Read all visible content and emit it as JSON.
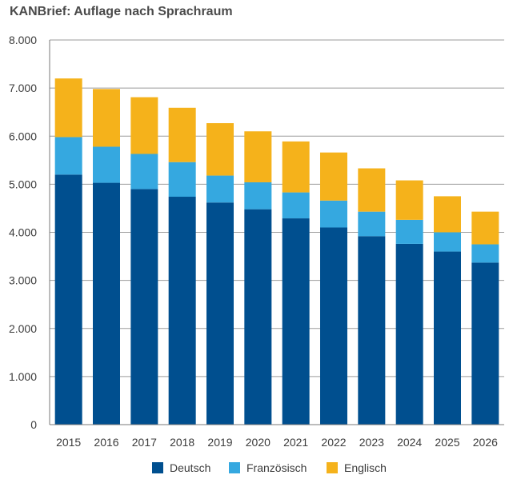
{
  "chart_data": {
    "type": "bar",
    "stacked": true,
    "title": "KANBrief: Auflage nach Sprachraum",
    "xlabel": "",
    "ylabel": "",
    "ylim": [
      0,
      8000
    ],
    "yticks": [
      0,
      1000,
      2000,
      3000,
      4000,
      5000,
      6000,
      7000,
      8000
    ],
    "ytick_labels": [
      "0",
      "1.000",
      "2.000",
      "3.000",
      "4.000",
      "5.000",
      "6.000",
      "7.000",
      "8.000"
    ],
    "grid": true,
    "legend_position": "bottom-center",
    "categories": [
      "2015",
      "2016",
      "2017",
      "2018",
      "2019",
      "2020",
      "2021",
      "2022",
      "2023",
      "2024",
      "2025",
      "2026"
    ],
    "series": [
      {
        "name": "Deutsch",
        "color": "#004f8f",
        "values": [
          5200,
          5030,
          4900,
          4740,
          4620,
          4480,
          4290,
          4100,
          3920,
          3760,
          3600,
          3370
        ]
      },
      {
        "name": "Französisch",
        "color": "#35a8e0",
        "values": [
          780,
          750,
          730,
          720,
          560,
          560,
          540,
          560,
          510,
          500,
          400,
          380
        ]
      },
      {
        "name": "Englisch",
        "color": "#f5b21b",
        "values": [
          1220,
          1200,
          1180,
          1130,
          1090,
          1060,
          1060,
          1000,
          900,
          820,
          750,
          680
        ]
      }
    ]
  }
}
